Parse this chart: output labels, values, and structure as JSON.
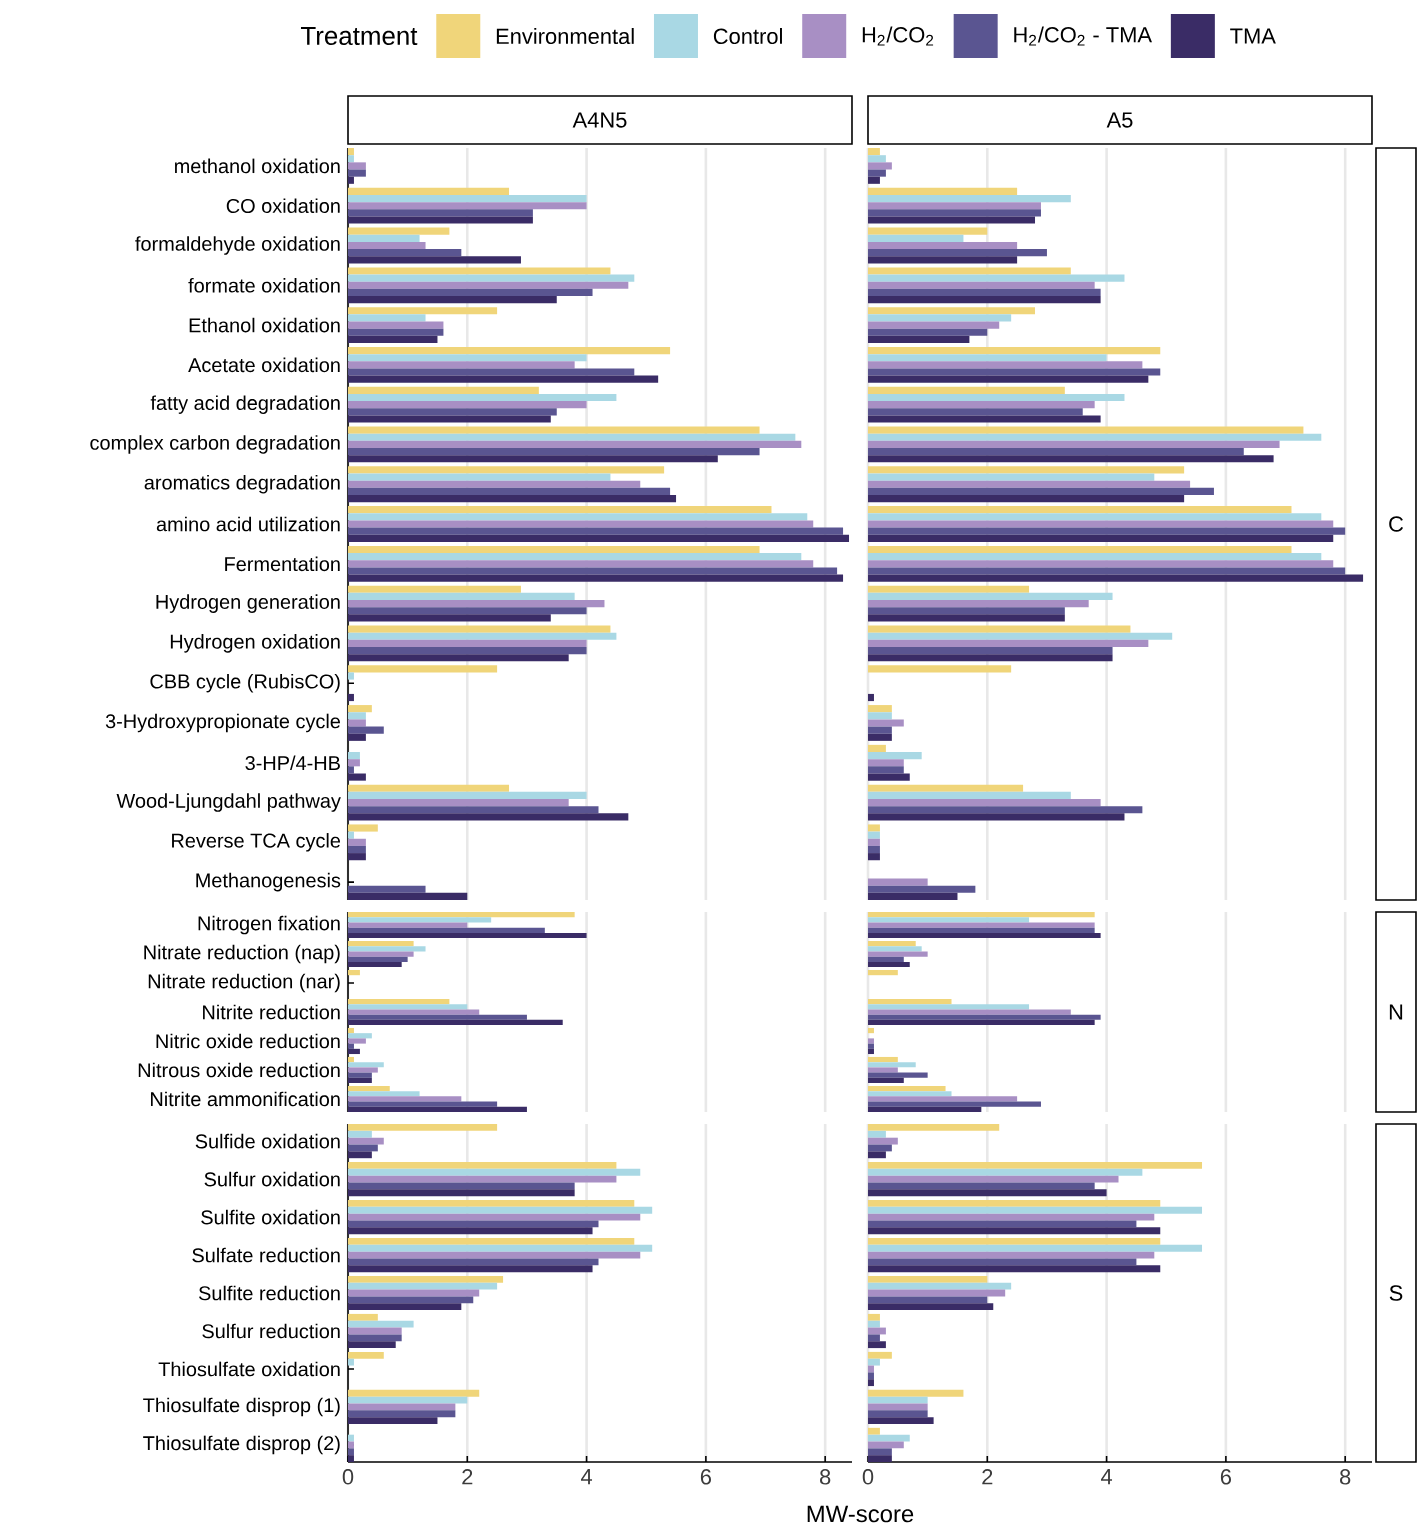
{
  "chart_data": [
    {
      "type": "bar",
      "orientation": "horizontal",
      "title": "A4N5",
      "legend": "top",
      "legend_title": "Treatment",
      "tick_labels": "y",
      "grid": "x",
      "xlim": [
        0,
        8.45
      ],
      "xticks": [
        0,
        2,
        4,
        6,
        8
      ],
      "categories": [
        "methanol oxidation",
        "CO oxidation",
        "formaldehyde oxidation",
        "formate oxidation",
        "Ethanol oxidation",
        "Acetate oxidation",
        "fatty acid degradation",
        "complex carbon degradation",
        "aromatics degradation",
        "amino acid utilization",
        "Fermentation",
        "Hydrogen generation",
        "Hydrogen oxidation",
        "CBB cycle (RubisCO)",
        "3-Hydroxypropionate cycle",
        "3-HP/4-HB",
        "Wood-Ljungdahl pathway",
        "Reverse TCA cycle",
        "Methanogenesis"
      ],
      "series": [
        {
          "name": "Environmental",
          "color": "#f0d57a",
          "values": [
            0.1,
            2.7,
            1.7,
            4.4,
            2.5,
            5.4,
            3.2,
            6.9,
            5.3,
            7.1,
            6.9,
            2.9,
            4.4,
            2.5,
            0.4,
            0,
            2.7,
            0.5,
            0
          ]
        },
        {
          "name": "Control",
          "color": "#a9d8e4",
          "values": [
            0.1,
            4.0,
            1.2,
            4.8,
            1.3,
            4.0,
            4.5,
            7.5,
            4.4,
            7.7,
            7.6,
            3.8,
            4.5,
            0.1,
            0.3,
            0.2,
            4.0,
            0.1,
            0
          ]
        },
        {
          "name": "H$_{2}$/CO$_{2}$",
          "color": "#a88fc4",
          "values": [
            0.3,
            4.0,
            1.3,
            4.7,
            1.6,
            3.8,
            4.0,
            7.6,
            4.9,
            7.8,
            7.8,
            4.3,
            4.0,
            0,
            0.3,
            0.2,
            3.7,
            0.3,
            0
          ]
        },
        {
          "name": "H$_{2}$/CO$_{2}$ - TMA",
          "color": "#5a5591",
          "values": [
            0.3,
            3.1,
            1.9,
            4.1,
            1.6,
            4.8,
            3.5,
            6.9,
            5.4,
            8.3,
            8.2,
            4.0,
            4.0,
            0,
            0.6,
            0.1,
            4.2,
            0.3,
            1.3
          ]
        },
        {
          "name": "TMA",
          "color": "#3a2c66",
          "values": [
            0.1,
            3.1,
            2.9,
            3.5,
            1.5,
            5.2,
            3.4,
            6.2,
            5.5,
            8.4,
            8.3,
            3.4,
            3.7,
            0.1,
            0.3,
            0.3,
            4.7,
            0.3,
            2.0
          ]
        }
      ]
    },
    {
      "type": "bar",
      "orientation": "horizontal",
      "title": "A5",
      "y2label": "C",
      "tick_labels": false,
      "grid": "x",
      "xticks": [
        0,
        2,
        4,
        6,
        8
      ],
      "categories": [
        null,
        null,
        null,
        null,
        null,
        null,
        null,
        null,
        null,
        null,
        null,
        null,
        null,
        null,
        null,
        null,
        null,
        null,
        null
      ],
      "series": [
        {
          "color": "#f0d57a",
          "values": [
            0.2,
            2.5,
            2.0,
            3.4,
            2.8,
            4.9,
            3.3,
            7.3,
            5.3,
            7.1,
            7.1,
            2.7,
            4.4,
            2.4,
            0.4,
            0.3,
            2.6,
            0.2,
            0
          ]
        },
        {
          "color": "#a9d8e4",
          "values": [
            0.3,
            3.4,
            1.6,
            4.3,
            2.4,
            4.0,
            4.3,
            7.6,
            4.8,
            7.6,
            7.6,
            4.1,
            5.1,
            0,
            0.4,
            0.9,
            3.4,
            0.2,
            0
          ]
        },
        {
          "color": "#a88fc4",
          "values": [
            0.4,
            2.9,
            2.5,
            3.8,
            2.2,
            4.6,
            3.8,
            6.9,
            5.4,
            7.8,
            7.8,
            3.7,
            4.7,
            0,
            0.6,
            0.6,
            3.9,
            0.2,
            1.0
          ]
        },
        {
          "color": "#5a5591",
          "values": [
            0.3,
            2.9,
            3.0,
            3.9,
            2.0,
            4.9,
            3.6,
            6.3,
            5.8,
            8.0,
            8.0,
            3.3,
            4.1,
            0,
            0.4,
            0.6,
            4.6,
            0.2,
            1.8
          ]
        },
        {
          "color": "#3a2c66",
          "values": [
            0.2,
            2.8,
            2.5,
            3.9,
            1.7,
            4.7,
            3.9,
            6.8,
            5.3,
            7.8,
            8.3,
            3.3,
            4.1,
            0.1,
            0.4,
            0.7,
            4.3,
            0.2,
            1.5
          ]
        }
      ]
    },
    {
      "type": "bar",
      "orientation": "horizontal",
      "tick_labels": "y",
      "grid": "x",
      "xticks": [
        0,
        2,
        4,
        6,
        8
      ],
      "categories": [
        "Nitrogen fixation",
        "Nitrate reduction (nap)",
        "Nitrate reduction (nar)",
        "Nitrite reduction",
        "Nitric oxide reduction",
        "Nitrous oxide reduction",
        "Nitrite ammonification"
      ],
      "series": [
        {
          "color": "#f0d57a",
          "values": [
            3.8,
            1.1,
            0.2,
            1.7,
            0.1,
            0.1,
            0.7
          ]
        },
        {
          "color": "#a9d8e4",
          "values": [
            2.4,
            1.3,
            0,
            2.0,
            0.4,
            0.6,
            1.2
          ]
        },
        {
          "color": "#a88fc4",
          "values": [
            2.0,
            1.1,
            0,
            2.2,
            0.3,
            0.5,
            1.9
          ]
        },
        {
          "color": "#5a5591",
          "values": [
            3.3,
            1.0,
            0,
            3.0,
            0.1,
            0.4,
            2.5
          ]
        },
        {
          "color": "#3a2c66",
          "values": [
            4.0,
            0.9,
            0,
            3.6,
            0.2,
            0.4,
            3.0
          ]
        }
      ]
    },
    {
      "type": "bar",
      "orientation": "horizontal",
      "y2label": "N",
      "tick_labels": false,
      "grid": "x",
      "xticks": [
        0,
        2,
        4,
        6,
        8
      ],
      "categories": [
        null,
        null,
        null,
        null,
        null,
        null,
        null
      ],
      "series": [
        {
          "color": "#f0d57a",
          "values": [
            3.8,
            0.8,
            0.5,
            1.4,
            0.1,
            0.5,
            1.3
          ]
        },
        {
          "color": "#a9d8e4",
          "values": [
            2.7,
            0.9,
            0,
            2.7,
            0,
            0.8,
            1.4
          ]
        },
        {
          "color": "#a88fc4",
          "values": [
            3.8,
            1.0,
            0,
            3.4,
            0.1,
            0.5,
            2.5
          ]
        },
        {
          "color": "#5a5591",
          "values": [
            3.8,
            0.6,
            0,
            3.9,
            0.1,
            1.0,
            2.9
          ]
        },
        {
          "color": "#3a2c66",
          "values": [
            3.9,
            0.7,
            0,
            3.8,
            0.1,
            0.6,
            1.9
          ]
        }
      ]
    },
    {
      "type": "bar",
      "orientation": "horizontal",
      "xlabel": "MW-score",
      "grid": "x",
      "xlim": [
        0,
        8.45
      ],
      "xticks": [
        0,
        2,
        4,
        6,
        8
      ],
      "categories": [
        "Sulfide oxidation",
        "Sulfur oxidation",
        "Sulfite oxidation",
        "Sulfate reduction",
        "Sulfite reduction",
        "Sulfur reduction",
        "Thiosulfate oxidation",
        "Thiosulfate disprop (1)",
        "Thiosulfate disprop (2)"
      ],
      "series": [
        {
          "color": "#f0d57a",
          "values": [
            2.5,
            4.5,
            4.8,
            4.8,
            2.6,
            0.5,
            0.6,
            2.2,
            0
          ]
        },
        {
          "color": "#a9d8e4",
          "values": [
            0.4,
            4.9,
            5.1,
            5.1,
            2.5,
            1.1,
            0.1,
            2.0,
            0.1
          ]
        },
        {
          "color": "#a88fc4",
          "values": [
            0.6,
            4.5,
            4.9,
            4.9,
            2.2,
            0.9,
            0,
            1.8,
            0.1
          ]
        },
        {
          "color": "#5a5591",
          "values": [
            0.5,
            3.8,
            4.2,
            4.2,
            2.1,
            0.9,
            0,
            1.8,
            0.1
          ]
        },
        {
          "color": "#3a2c66",
          "values": [
            0.4,
            3.8,
            4.1,
            4.1,
            1.9,
            0.8,
            0,
            1.5,
            0.1
          ]
        }
      ]
    },
    {
      "type": "bar",
      "orientation": "horizontal",
      "y2label": "S",
      "tick_labels": "x",
      "grid": "x",
      "xlim": [
        0,
        8.45
      ],
      "xticks": [
        0,
        2,
        4,
        6,
        8
      ],
      "categories": [
        null,
        null,
        null,
        null,
        null,
        null,
        null,
        null,
        null
      ],
      "series": [
        {
          "color": "#f0d57a",
          "values": [
            2.2,
            5.6,
            4.9,
            4.9,
            2.0,
            0.2,
            0.4,
            1.6,
            0.2
          ]
        },
        {
          "color": "#a9d8e4",
          "values": [
            0.3,
            4.6,
            5.6,
            5.6,
            2.4,
            0.2,
            0.2,
            1.0,
            0.7
          ]
        },
        {
          "color": "#a88fc4",
          "values": [
            0.5,
            4.2,
            4.8,
            4.8,
            2.3,
            0.3,
            0.1,
            1.0,
            0.6
          ]
        },
        {
          "color": "#5a5591",
          "values": [
            0.4,
            3.8,
            4.5,
            4.5,
            2.0,
            0.2,
            0.1,
            1.0,
            0.4
          ]
        },
        {
          "color": "#3a2c66",
          "values": [
            0.3,
            4.0,
            4.9,
            4.9,
            2.1,
            0.3,
            0.1,
            1.1,
            0.4
          ]
        }
      ]
    }
  ]
}
